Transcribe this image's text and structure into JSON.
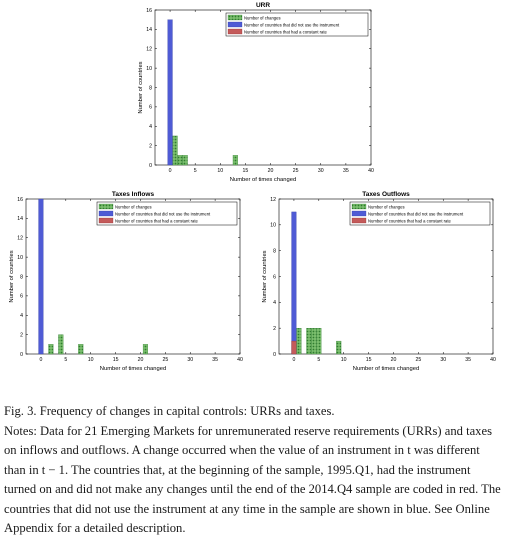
{
  "chart_data": [
    {
      "type": "bar",
      "title": "URR",
      "xlabel": "Number of times changed",
      "ylabel": "Number of countries",
      "xlim": [
        -3,
        40
      ],
      "ylim": [
        0,
        16
      ],
      "xticks": [
        "0",
        "5",
        "10",
        "15",
        "20",
        "25",
        "30",
        "35",
        "40"
      ],
      "yticks": [
        "0",
        "2",
        "4",
        "6",
        "8",
        "10",
        "12",
        "14",
        "16"
      ],
      "legend_position": "top-right",
      "series": [
        {
          "name": "Number of changes",
          "color": "#5aa84f",
          "points": [
            {
              "x": 1,
              "y": 3
            },
            {
              "x": 2,
              "y": 1
            },
            {
              "x": 3,
              "y": 1
            },
            {
              "x": 13,
              "y": 1
            }
          ]
        },
        {
          "name": "Number of countries that did not use the instrument",
          "color": "#4656c8",
          "points": [
            {
              "x": 0,
              "y": 15
            }
          ]
        },
        {
          "name": "Number of countries that had a constant rate",
          "color": "#c0504d",
          "points": []
        }
      ]
    },
    {
      "type": "bar",
      "title": "Taxes Inflows",
      "xlabel": "Number of times changed",
      "ylabel": "Number of countries",
      "xlim": [
        -3,
        40
      ],
      "ylim": [
        0,
        16
      ],
      "xticks": [
        "0",
        "5",
        "10",
        "15",
        "20",
        "25",
        "30",
        "35",
        "40"
      ],
      "yticks": [
        "0",
        "2",
        "4",
        "6",
        "8",
        "10",
        "12",
        "14",
        "16"
      ],
      "legend_position": "top-right",
      "series": [
        {
          "name": "Number of changes",
          "color": "#5aa84f",
          "points": [
            {
              "x": 2,
              "y": 1
            },
            {
              "x": 4,
              "y": 2
            },
            {
              "x": 8,
              "y": 1
            },
            {
              "x": 21,
              "y": 1
            }
          ]
        },
        {
          "name": "Number of countries that did not use the instrument",
          "color": "#4656c8",
          "points": [
            {
              "x": 0,
              "y": 16
            }
          ]
        },
        {
          "name": "Number of countries that had a constant rate",
          "color": "#c0504d",
          "points": []
        }
      ]
    },
    {
      "type": "bar",
      "title": "Taxes Outflows",
      "xlabel": "Number of times changed",
      "ylabel": "Number of countries",
      "xlim": [
        -3,
        40
      ],
      "ylim": [
        0,
        12
      ],
      "xticks": [
        "0",
        "5",
        "10",
        "15",
        "20",
        "25",
        "30",
        "35",
        "40"
      ],
      "yticks": [
        "0",
        "2",
        "4",
        "6",
        "8",
        "10",
        "12"
      ],
      "legend_position": "top-right",
      "series": [
        {
          "name": "Number of changes",
          "color": "#5aa84f",
          "points": [
            {
              "x": 1,
              "y": 2
            },
            {
              "x": 3,
              "y": 2
            },
            {
              "x": 4,
              "y": 2
            },
            {
              "x": 5,
              "y": 2
            },
            {
              "x": 9,
              "y": 1
            }
          ]
        },
        {
          "name": "Number of countries that did not use the instrument",
          "color": "#4656c8",
          "points": [
            {
              "x": 0,
              "y": 11
            }
          ]
        },
        {
          "name": "Number of countries that had a constant rate",
          "color": "#c0504d",
          "points": [
            {
              "x": 0,
              "y": 1
            }
          ]
        }
      ]
    }
  ],
  "caption": {
    "title": "Fig. 3. Frequency of changes in capital controls: URRs and taxes.",
    "notes": "Notes: Data for 21 Emerging Markets for unremunerated reserve requirements (URRs) and taxes on inflows and outflows. A change occurred when the value of an instrument in t was different than in t − 1. The countries that, at the beginning of the sample, 1995.Q1, had the instrument turned on and did not make any changes until the end of the 2014.Q4 sample are coded in red. The countries that did not use the instrument at any time in the sample are shown in blue. See Online Appendix for a detailed description."
  }
}
